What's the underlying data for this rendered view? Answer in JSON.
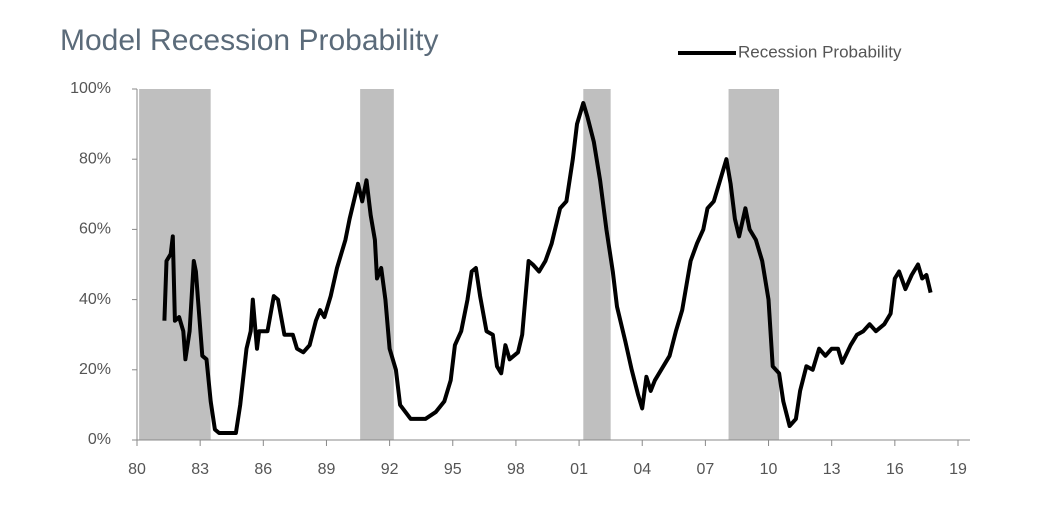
{
  "chart_data": {
    "type": "line",
    "title": "Model Recession Probability",
    "legend": "top-right",
    "grid": false,
    "xlim": [
      1980,
      2019
    ],
    "xticks": [
      {
        "value": 1980,
        "label": "80"
      },
      {
        "value": 1983,
        "label": "83"
      },
      {
        "value": 1986,
        "label": "86"
      },
      {
        "value": 1989,
        "label": "89"
      },
      {
        "value": 1992,
        "label": "92"
      },
      {
        "value": 1995,
        "label": "95"
      },
      {
        "value": 1998,
        "label": "98"
      },
      {
        "value": 2001,
        "label": "01"
      },
      {
        "value": 2004,
        "label": "04"
      },
      {
        "value": 2007,
        "label": "07"
      },
      {
        "value": 2010,
        "label": "10"
      },
      {
        "value": 2013,
        "label": "13"
      },
      {
        "value": 2016,
        "label": "16"
      },
      {
        "value": 2019,
        "label": "19"
      }
    ],
    "ylim": [
      0,
      100
    ],
    "yticks": [
      {
        "value": 0,
        "label": "0%"
      },
      {
        "value": 20,
        "label": "20%"
      },
      {
        "value": 40,
        "label": "40%"
      },
      {
        "value": 60,
        "label": "60%"
      },
      {
        "value": 80,
        "label": "80%"
      },
      {
        "value": 100,
        "label": "100%"
      }
    ],
    "shaded_periods": [
      [
        1980.1,
        1983.5
      ],
      [
        1990.6,
        1992.2
      ],
      [
        2001.2,
        2002.5
      ],
      [
        2008.1,
        2010.5
      ]
    ],
    "shade_color": "#bfbfbf",
    "x": [
      1981.3,
      1981.4,
      1981.6,
      1981.7,
      1981.8,
      1982.0,
      1982.2,
      1982.3,
      1982.5,
      1982.7,
      1982.8,
      1982.9,
      1983.1,
      1983.3,
      1983.5,
      1983.7,
      1983.9,
      1984.7,
      1984.9,
      1985.2,
      1985.4,
      1985.5,
      1985.7,
      1985.8,
      1986.2,
      1986.5,
      1986.7,
      1987.0,
      1987.4,
      1987.6,
      1987.9,
      1988.2,
      1988.5,
      1988.7,
      1988.9,
      1989.2,
      1989.5,
      1989.9,
      1990.1,
      1990.5,
      1990.7,
      1990.9,
      1991.1,
      1991.3,
      1991.4,
      1991.6,
      1991.8,
      1992.0,
      1992.3,
      1992.5,
      1993.0,
      1993.7,
      1994.2,
      1994.6,
      1994.9,
      1995.1,
      1995.4,
      1995.7,
      1995.9,
      1996.1,
      1996.3,
      1996.6,
      1996.9,
      1997.1,
      1997.3,
      1997.5,
      1997.7,
      1998.1,
      1998.3,
      1998.6,
      1998.8,
      1999.1,
      1999.4,
      1999.7,
      2000.1,
      2000.4,
      2000.7,
      2000.9,
      2001.2,
      2001.4,
      2001.7,
      2002.0,
      2002.3,
      2002.6,
      2002.8,
      2003.2,
      2003.5,
      2003.8,
      2004.0,
      2004.2,
      2004.4,
      2004.6,
      2004.9,
      2005.3,
      2005.6,
      2005.9,
      2006.3,
      2006.6,
      2006.9,
      2007.1,
      2007.4,
      2007.7,
      2008.0,
      2008.2,
      2008.4,
      2008.6,
      2008.9,
      2009.1,
      2009.4,
      2009.7,
      2010.0,
      2010.2,
      2010.5,
      2010.7,
      2011.0,
      2011.3,
      2011.5,
      2011.8,
      2012.1,
      2012.4,
      2012.7,
      2013.0,
      2013.3,
      2013.5,
      2013.9,
      2014.2,
      2014.5,
      2014.8,
      2015.1,
      2015.5,
      2015.8,
      2016.0,
      2016.2,
      2016.5,
      2016.8,
      2017.1,
      2017.3,
      2017.5,
      2017.7
    ],
    "series": [
      {
        "name": "Recession Probability",
        "color": "#000000",
        "values": [
          34,
          51,
          53,
          58,
          34,
          35,
          31,
          23,
          31,
          51,
          48,
          40,
          24,
          23,
          11,
          3,
          2,
          2,
          10,
          26,
          31,
          40,
          26,
          31,
          31,
          41,
          40,
          30,
          30,
          26,
          25,
          27,
          34,
          37,
          35,
          41,
          49,
          57,
          63,
          73,
          68,
          74,
          64,
          57,
          46,
          49,
          40,
          26,
          20,
          10,
          6,
          6,
          8,
          11,
          17,
          27,
          31,
          40,
          48,
          49,
          41,
          31,
          30,
          21,
          19,
          27,
          23,
          25,
          30,
          51,
          50,
          48,
          51,
          56,
          66,
          68,
          80,
          90,
          96,
          92,
          85,
          74,
          60,
          48,
          38,
          28,
          20,
          13,
          9,
          18,
          14,
          17,
          20,
          24,
          31,
          37,
          51,
          56,
          60,
          66,
          68,
          74,
          80,
          73,
          63,
          58,
          66,
          60,
          57,
          51,
          40,
          21,
          19,
          11,
          4,
          6,
          14,
          21,
          20,
          26,
          24,
          26,
          26,
          22,
          27,
          30,
          31,
          33,
          31,
          33,
          36,
          46,
          48,
          43,
          47,
          50,
          46,
          47,
          42
        ]
      }
    ]
  }
}
